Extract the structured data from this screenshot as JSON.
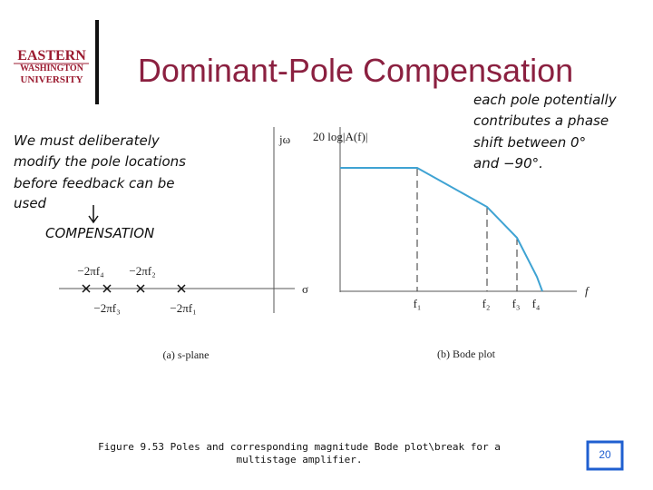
{
  "logo": {
    "lines": [
      "EASTERN",
      "WASHINGTON",
      "UNIVERSITY"
    ]
  },
  "title": "Dominant-Pole Compensation",
  "note_left": {
    "lines": [
      "We must deliberately",
      "modify the pole locations",
      "before feedback can be",
      "used"
    ],
    "keyword": "COMPENSATION"
  },
  "note_right": {
    "lines": [
      "each pole potentially",
      "contributes a phase",
      "shift between 0°",
      "and −90°."
    ]
  },
  "s_plane": {
    "y_axis": "jω",
    "x_axis": "σ",
    "poles": [
      "−2πf₄",
      "−2πf₂",
      "−2πf₃",
      "−2πf₁"
    ],
    "caption": "(a) s-plane"
  },
  "bode": {
    "y_axis": "20 log|A(f)|",
    "x_axis": "f",
    "breaks": [
      "f₁",
      "f₂",
      "f₃",
      "f₄"
    ],
    "caption": "(b) Bode plot"
  },
  "caption": {
    "lines": [
      "Figure 9.53 Poles and corresponding magnitude Bode plot\\break for a",
      "multistage amplifier."
    ]
  },
  "page_number": "20"
}
